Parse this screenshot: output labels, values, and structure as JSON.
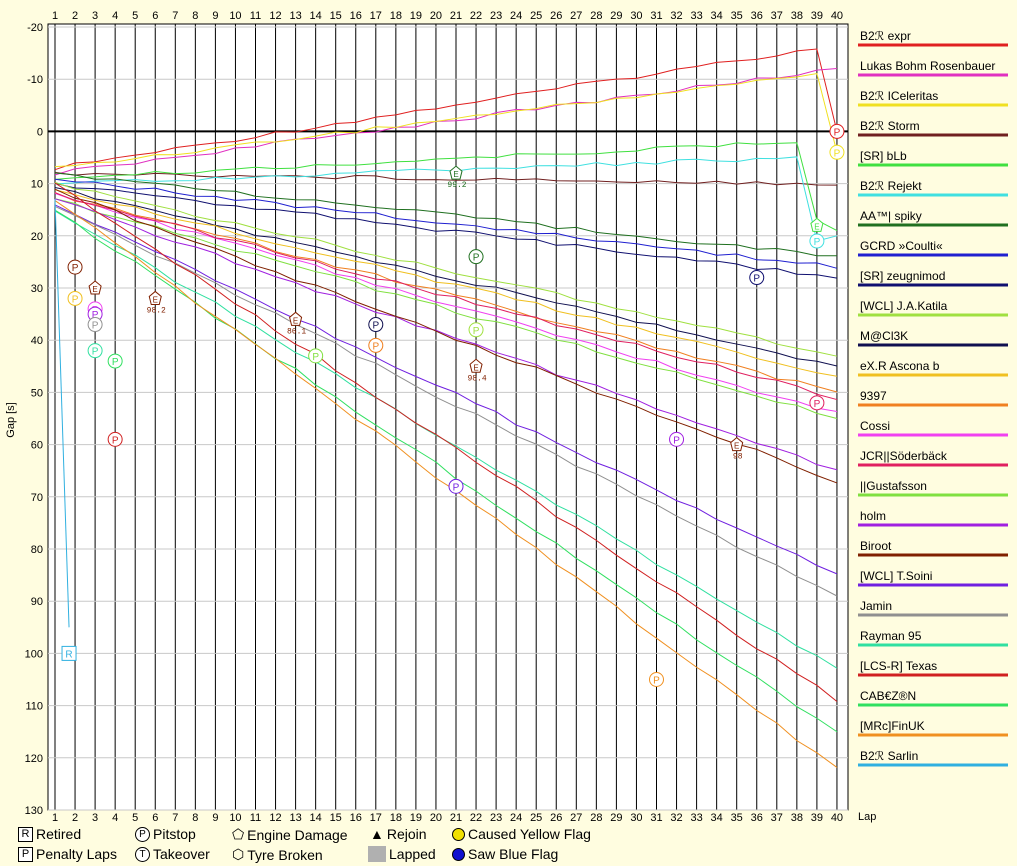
{
  "chart_data": {
    "type": "line",
    "ylabel": "Gap [s]",
    "xlabel": "Lap",
    "x_ticks": [
      1,
      2,
      3,
      4,
      5,
      6,
      7,
      8,
      9,
      10,
      11,
      12,
      13,
      14,
      15,
      16,
      17,
      18,
      19,
      20,
      21,
      22,
      23,
      24,
      25,
      26,
      27,
      28,
      29,
      30,
      31,
      32,
      33,
      34,
      35,
      36,
      37,
      38,
      39,
      40
    ],
    "y_ticks": [
      -20,
      -10,
      0,
      10,
      20,
      30,
      40,
      50,
      60,
      70,
      80,
      90,
      100,
      110,
      120,
      130
    ],
    "ylim": [
      -20,
      130
    ],
    "xlim": [
      1,
      40
    ],
    "y_inverted": true,
    "series": [
      {
        "name": "B2ℛ expr",
        "color": "#e02020",
        "start": 7,
        "end": -16,
        "final": [
          {
            "lap": 39,
            "gap": -16
          },
          {
            "lap": 40,
            "gap": 0
          }
        ],
        "marks": [
          {
            "type": "P",
            "lap": 40,
            "gap": 0
          }
        ]
      },
      {
        "name": "Lukas Bohm Rosenbauer",
        "color": "#e030c0",
        "start": 8,
        "end": -12,
        "final": [
          {
            "lap": 40,
            "gap": -10
          }
        ],
        "marks": []
      },
      {
        "name": "B2ℛ ICeleritas",
        "color": "#f0e020",
        "start": 7,
        "end": -11,
        "final": [
          {
            "lap": 39,
            "gap": -11
          },
          {
            "lap": 40,
            "gap": 4
          }
        ],
        "marks": [
          {
            "type": "P",
            "lap": 40,
            "gap": 4
          }
        ]
      },
      {
        "name": "B2ℛ Storm",
        "color": "#702020",
        "start": 8,
        "end": 10,
        "marks": []
      },
      {
        "name": "[SR] bLb",
        "color": "#40e040",
        "start": 9,
        "end": 2,
        "final": [
          {
            "lap": 38,
            "gap": 1
          },
          {
            "lap": 39,
            "gap": 17
          },
          {
            "lap": 40,
            "gap": 19
          }
        ],
        "marks": [
          {
            "type": "E",
            "lap": 39,
            "gap": 18
          }
        ]
      },
      {
        "name": "B2ℛ Rejekt",
        "color": "#40e0e0",
        "start": 10,
        "end": 5,
        "final": [
          {
            "lap": 38,
            "gap": 5
          },
          {
            "lap": 39,
            "gap": 21
          },
          {
            "lap": 40,
            "gap": 20
          }
        ],
        "marks": [
          {
            "type": "P",
            "lap": 39,
            "gap": 21
          }
        ]
      },
      {
        "name": "AA™| spiky",
        "color": "#207020",
        "start": 8,
        "end": 24,
        "marks": [
          {
            "type": "E",
            "lap": 21,
            "gap": 8,
            "label": "99.2"
          },
          {
            "type": "P",
            "lap": 22,
            "gap": 24
          }
        ]
      },
      {
        "name": "GCRD »Coulti«",
        "color": "#2020d0",
        "start": 9,
        "end": 26,
        "marks": []
      },
      {
        "name": "[SR] zeugnimod",
        "color": "#101070",
        "start": 10,
        "end": 28,
        "marks": [
          {
            "type": "P",
            "lap": 36,
            "gap": 28
          }
        ]
      },
      {
        "name": "[WCL] J.A.Katila",
        "color": "#a0e040",
        "start": 10,
        "end": 43,
        "marks": [
          {
            "type": "P",
            "lap": 22,
            "gap": 38
          }
        ]
      },
      {
        "name": "M@Cl3K",
        "color": "#101050",
        "start": 11,
        "end": 45,
        "marks": [
          {
            "type": "P",
            "lap": 17,
            "gap": 37
          }
        ]
      },
      {
        "name": "eX.R Ascona b",
        "color": "#f0c020",
        "start": 11,
        "end": 47,
        "marks": [
          {
            "type": "P",
            "lap": 2,
            "gap": 32
          }
        ]
      },
      {
        "name": "9397",
        "color": "#f08020",
        "start": 12,
        "end": 50,
        "marks": [
          {
            "type": "P",
            "lap": 17,
            "gap": 41
          }
        ]
      },
      {
        "name": "Cossi",
        "color": "#f040f0",
        "start": 12,
        "end": 54,
        "marks": [
          {
            "type": "P",
            "lap": 3,
            "gap": 34
          }
        ]
      },
      {
        "name": "JCR||Söderbäck",
        "color": "#e02060",
        "start": 12,
        "end": 51,
        "marks": [
          {
            "type": "P",
            "lap": 39,
            "gap": 52
          }
        ]
      },
      {
        "name": "||Gustafsson",
        "color": "#80e040",
        "start": 13,
        "end": 55,
        "marks": [
          {
            "type": "P",
            "lap": 14,
            "gap": 43
          }
        ]
      },
      {
        "name": "holm",
        "color": "#a020e0",
        "start": 13,
        "end": 65,
        "marks": [
          {
            "type": "P",
            "lap": 3,
            "gap": 35
          },
          {
            "type": "P",
            "lap": 32,
            "gap": 59
          }
        ]
      },
      {
        "name": "Biroot",
        "color": "#802000",
        "start": 11,
        "end": 67,
        "marks": [
          {
            "type": "P",
            "lap": 2,
            "gap": 26
          },
          {
            "type": "E",
            "lap": 3,
            "gap": 30
          },
          {
            "type": "E",
            "lap": 6,
            "gap": 32,
            "label": "98.2"
          },
          {
            "type": "E",
            "lap": 13,
            "gap": 36,
            "label": "86.1"
          },
          {
            "type": "E",
            "lap": 22,
            "gap": 45,
            "label": "98.4"
          },
          {
            "type": "E",
            "lap": 35,
            "gap": 60,
            "label": "98"
          }
        ]
      },
      {
        "name": "[WCL] T.Soini",
        "color": "#7020e0",
        "start": 14,
        "end": 85,
        "marks": [
          {
            "type": "P",
            "lap": 21,
            "gap": 68
          }
        ]
      },
      {
        "name": "Jamin",
        "color": "#909090",
        "start": 14,
        "end": 89,
        "marks": [
          {
            "type": "P",
            "lap": 3,
            "gap": 37
          }
        ]
      },
      {
        "name": "Rayman 95",
        "color": "#30e0a0",
        "start": 15,
        "end": 103,
        "marks": [
          {
            "type": "P",
            "lap": 3,
            "gap": 42
          }
        ]
      },
      {
        "name": "[LCS-R] Texas",
        "color": "#d02020",
        "start": 10,
        "end": 109,
        "marks": [
          {
            "type": "P",
            "lap": 4,
            "gap": 59
          }
        ]
      },
      {
        "name": "CAB€Z®N",
        "color": "#30e060",
        "start": 15,
        "end": 115,
        "marks": [
          {
            "type": "P",
            "lap": 4,
            "gap": 44
          }
        ]
      },
      {
        "name": "[MRc]FinUK",
        "color": "#f09020",
        "start": 13,
        "end": 122,
        "marks": [
          {
            "type": "P",
            "lap": 31,
            "gap": 105
          }
        ]
      },
      {
        "name": "B2ℛ Sarlin",
        "color": "#30b0e0",
        "start": 13,
        "end": 100,
        "marks": [
          {
            "type": "R",
            "lap": 1.7,
            "gap": 100
          }
        ]
      }
    ]
  },
  "key": {
    "retired": "Retired",
    "penalty": "Penalty Laps",
    "pitstop": "Pitstop",
    "takeover": "Takeover",
    "engine": "Engine Damage",
    "tyre": "Tyre Broken",
    "rejoin": "Rejoin",
    "lapped": "Lapped",
    "yellow": "Caused Yellow Flag",
    "blue": "Saw Blue Flag"
  }
}
